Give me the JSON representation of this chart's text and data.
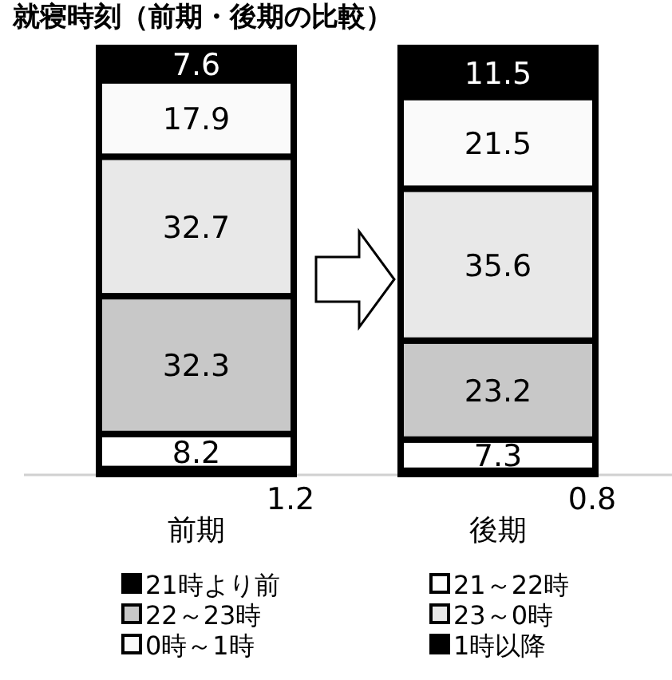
{
  "chart_data": {
    "type": "bar",
    "stacked": true,
    "data_labels": true,
    "legend": "bottom",
    "title": "就寝時刻（前期・後期の比較）",
    "categories": [
      "前期",
      "後期"
    ],
    "series": [
      {
        "name": "21時より前",
        "color": "#000000",
        "values": [
          1.2,
          0.8
        ]
      },
      {
        "name": "21～22時",
        "color": "#ffffff",
        "values": [
          8.2,
          7.3
        ]
      },
      {
        "name": "22～23時",
        "color": "#c8c8c8",
        "values": [
          32.3,
          23.2
        ]
      },
      {
        "name": "23～0時",
        "color": "#e8e8e8",
        "values": [
          32.7,
          35.6
        ]
      },
      {
        "name": "0時～1時",
        "color": "#fafafa",
        "values": [
          17.9,
          21.5
        ]
      },
      {
        "name": "1時以降",
        "color": "#000000",
        "values": [
          7.6,
          11.5
        ]
      }
    ]
  }
}
